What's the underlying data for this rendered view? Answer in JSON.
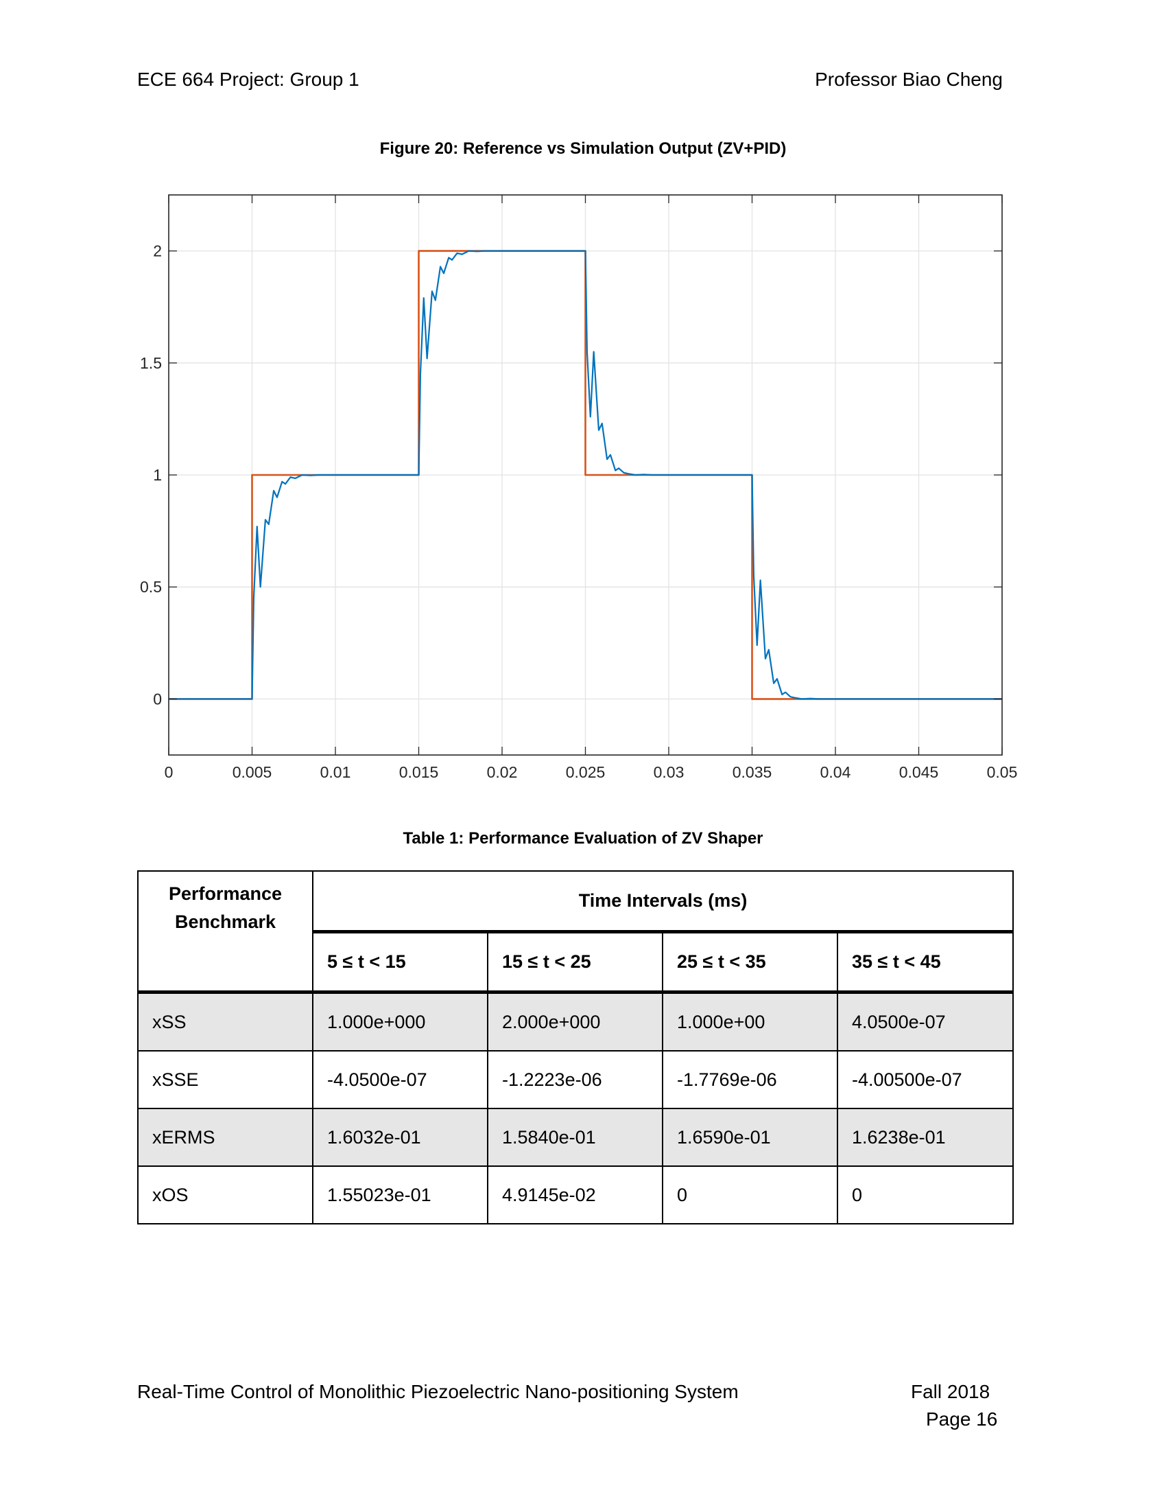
{
  "header": {
    "left": "ECE 664 Project: Group 1",
    "right": "Professor Biao Cheng"
  },
  "figure": {
    "caption": "Figure 20: Reference vs Simulation Output (ZV+PID)",
    "chart_data": {
      "type": "line",
      "title": "",
      "xlabel": "",
      "ylabel": "",
      "xlim": [
        0,
        0.05
      ],
      "ylim": [
        -0.25,
        2.25
      ],
      "xticks": [
        "0",
        "0.005",
        "0.01",
        "0.015",
        "0.02",
        "0.025",
        "0.03",
        "0.035",
        "0.04",
        "0.045",
        "0.05"
      ],
      "yticks": [
        "0",
        "0.5",
        "1",
        "1.5",
        "2"
      ],
      "grid": true,
      "series": [
        {
          "color": "#d95319",
          "x": [
            0,
            0.005,
            0.005,
            0.015,
            0.015,
            0.025,
            0.025,
            0.035,
            0.035,
            0.05
          ],
          "y": [
            0,
            0,
            1,
            1,
            2,
            2,
            1,
            1,
            0,
            0
          ]
        },
        {
          "color": "#0072bd",
          "x": [
            0,
            0.005,
            0.0051,
            0.0053,
            0.0055,
            0.0058,
            0.006,
            0.0063,
            0.0065,
            0.0068,
            0.007,
            0.0073,
            0.0076,
            0.008,
            0.0085,
            0.009,
            0.015,
            0.0151,
            0.0153,
            0.0155,
            0.0158,
            0.016,
            0.0163,
            0.0165,
            0.0168,
            0.017,
            0.0173,
            0.0176,
            0.018,
            0.0185,
            0.019,
            0.025,
            0.0251,
            0.0253,
            0.0255,
            0.0258,
            0.026,
            0.0263,
            0.0265,
            0.0268,
            0.027,
            0.0273,
            0.0276,
            0.028,
            0.0285,
            0.029,
            0.035,
            0.0351,
            0.0353,
            0.0355,
            0.0358,
            0.036,
            0.0363,
            0.0365,
            0.0368,
            0.037,
            0.0373,
            0.0376,
            0.038,
            0.0385,
            0.039,
            0.05
          ],
          "y": [
            0,
            0,
            0.45,
            0.77,
            0.5,
            0.8,
            0.78,
            0.93,
            0.9,
            0.97,
            0.96,
            0.99,
            0.985,
            1.0,
            0.998,
            1.0,
            1.0,
            1.45,
            1.79,
            1.52,
            1.82,
            1.78,
            1.93,
            1.9,
            1.97,
            1.96,
            1.99,
            1.985,
            2.0,
            1.998,
            2.0,
            2.0,
            1.55,
            1.26,
            1.55,
            1.2,
            1.23,
            1.07,
            1.09,
            1.02,
            1.03,
            1.01,
            1.005,
            1.0,
            1.002,
            1.0,
            1.0,
            0.55,
            0.24,
            0.53,
            0.18,
            0.22,
            0.07,
            0.09,
            0.02,
            0.03,
            0.01,
            0.005,
            0.0,
            0.002,
            0.0,
            0.0
          ]
        }
      ]
    }
  },
  "table": {
    "caption": "Table 1: Performance Evaluation of ZV Shaper",
    "benchmark_header": "Performance Benchmark",
    "intervals_header": "Time Intervals (ms)",
    "columns": [
      "5 ≤ t < 15",
      "15 ≤ t < 25",
      "25 ≤ t < 35",
      "35 ≤ t < 45"
    ],
    "rows": [
      {
        "label": "xSS",
        "values": [
          "1.000e+000",
          "2.000e+000",
          "1.000e+00",
          "4.0500e-07"
        ]
      },
      {
        "label": "xSSE",
        "values": [
          "-4.0500e-07",
          "-1.2223e-06",
          "-1.7769e-06",
          "-4.00500e-07"
        ]
      },
      {
        "label": "xERMS",
        "values": [
          "1.6032e-01",
          "1.5840e-01",
          "1.6590e-01",
          "1.6238e-01"
        ]
      },
      {
        "label": "xOS",
        "values": [
          "1.55023e-01",
          "4.9145e-02",
          "0",
          "0"
        ]
      }
    ]
  },
  "footer": {
    "left": "Real-Time Control of Monolithic Piezoelectric Nano-positioning System",
    "right": "Fall 2018",
    "page": "Page 16"
  }
}
